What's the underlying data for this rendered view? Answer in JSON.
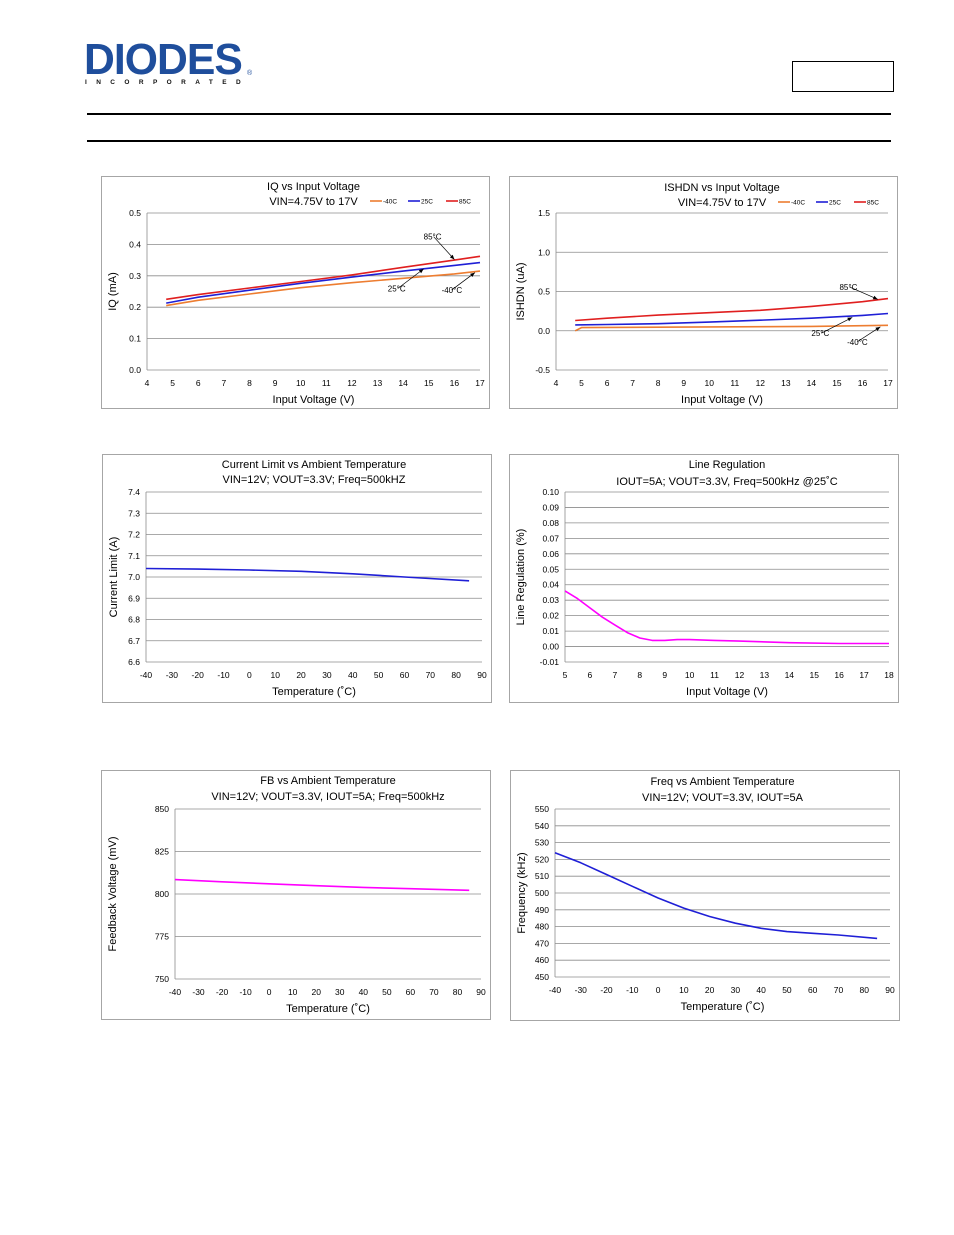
{
  "header": {
    "logo_text": "DIODES",
    "logo_sub": "INCORPORATED",
    "part_number": ""
  },
  "chart_data": [
    {
      "id": "iq",
      "type": "line",
      "title": "IQ vs Input Voltage",
      "subtitle": "VIN=4.75V to 17V",
      "xlabel": "Input Voltage (V)",
      "ylabel": "IQ (mA)",
      "xlim": [
        4,
        17
      ],
      "xticks": [
        4,
        5,
        6,
        7,
        8,
        9,
        10,
        11,
        12,
        13,
        14,
        15,
        16,
        17
      ],
      "ylim": [
        0,
        0.5
      ],
      "yticks": [
        0,
        0.1,
        0.2,
        0.3,
        0.4,
        0.5
      ],
      "decimals": 1,
      "grid": true,
      "legend_position": "top-right",
      "legend": [
        "-40C",
        "25C",
        "85C"
      ],
      "series": [
        {
          "name": "-40C",
          "color": "#ed7d31",
          "x": [
            4.75,
            6,
            8,
            10,
            12,
            14,
            16,
            17
          ],
          "y": [
            0.205,
            0.222,
            0.242,
            0.262,
            0.278,
            0.292,
            0.306,
            0.315
          ]
        },
        {
          "name": "25C",
          "color": "#1f1fd6",
          "x": [
            4.75,
            6,
            8,
            10,
            12,
            14,
            16,
            17
          ],
          "y": [
            0.213,
            0.232,
            0.254,
            0.276,
            0.296,
            0.315,
            0.333,
            0.342
          ]
        },
        {
          "name": "85C",
          "color": "#e01f1f",
          "x": [
            4.75,
            6,
            8,
            10,
            12,
            14,
            16,
            17
          ],
          "y": [
            0.225,
            0.24,
            0.261,
            0.282,
            0.303,
            0.327,
            0.35,
            0.362
          ]
        }
      ],
      "annotations": [
        {
          "text": "85°C",
          "x": 14.8,
          "y": 0.415,
          "arrow_to": [
            16.0,
            0.352
          ]
        },
        {
          "text": "25°C",
          "x": 13.4,
          "y": 0.25,
          "arrow_to": [
            14.8,
            0.322
          ]
        },
        {
          "text": "-40°C",
          "x": 15.5,
          "y": 0.245,
          "arrow_to": [
            16.8,
            0.31
          ]
        }
      ]
    },
    {
      "id": "ishdn",
      "type": "line",
      "title": "ISHDN vs Input Voltage",
      "subtitle": "VIN=4.75V to 17V",
      "xlabel": "Input Voltage (V)",
      "ylabel": "ISHDN (uA)",
      "xlim": [
        4,
        17
      ],
      "xticks": [
        4,
        5,
        6,
        7,
        8,
        9,
        10,
        11,
        12,
        13,
        14,
        15,
        16,
        17
      ],
      "ylim": [
        -0.5,
        1.5
      ],
      "yticks": [
        -0.5,
        0,
        0.5,
        1.0,
        1.5
      ],
      "decimals": 1,
      "grid": true,
      "legend_position": "top-right",
      "legend": [
        "-40C",
        "25C",
        "85C"
      ],
      "series": [
        {
          "name": "-40C",
          "color": "#ed7d31",
          "x": [
            4.75,
            5,
            8,
            11,
            14,
            17
          ],
          "y": [
            0.0,
            0.04,
            0.045,
            0.05,
            0.055,
            0.07
          ]
        },
        {
          "name": "25C",
          "color": "#1f1fd6",
          "x": [
            4.75,
            6,
            8,
            10,
            12,
            14,
            16,
            17
          ],
          "y": [
            0.075,
            0.08,
            0.09,
            0.11,
            0.135,
            0.16,
            0.195,
            0.22
          ]
        },
        {
          "name": "85C",
          "color": "#e01f1f",
          "x": [
            4.75,
            6,
            8,
            10,
            12,
            14,
            16,
            17
          ],
          "y": [
            0.13,
            0.16,
            0.2,
            0.23,
            0.26,
            0.31,
            0.37,
            0.41
          ]
        }
      ],
      "annotations": [
        {
          "text": "85°C",
          "x": 15.1,
          "y": 0.52,
          "arrow_to": [
            16.6,
            0.4
          ]
        },
        {
          "text": "25°C",
          "x": 14.0,
          "y": -0.07,
          "arrow_to": [
            15.6,
            0.17
          ]
        },
        {
          "text": "-40°C",
          "x": 15.4,
          "y": -0.18,
          "arrow_to": [
            16.7,
            0.05
          ]
        }
      ]
    },
    {
      "id": "ilim",
      "type": "line",
      "title": "Current Limit vs Ambient Temperature",
      "subtitle": "VIN=12V; VOUT=3.3V; Freq=500kHZ",
      "xlabel": "Temperature (˚C)",
      "ylabel": "Current Limit (A)",
      "xlim": [
        -40,
        90
      ],
      "xticks": [
        -40,
        -30,
        -20,
        -10,
        0,
        10,
        20,
        30,
        40,
        50,
        60,
        70,
        80,
        90
      ],
      "ylim": [
        6.6,
        7.4
      ],
      "yticks": [
        6.6,
        6.7,
        6.8,
        6.9,
        7.0,
        7.1,
        7.2,
        7.3,
        7.4
      ],
      "decimals": 1,
      "grid": true,
      "series": [
        {
          "color": "#1f1fd6",
          "x": [
            -40,
            -20,
            0,
            20,
            40,
            60,
            85
          ],
          "y": [
            7.04,
            7.037,
            7.033,
            7.027,
            7.015,
            7.0,
            6.982
          ]
        }
      ]
    },
    {
      "id": "linereg",
      "type": "line",
      "title": "Line Regulation",
      "subtitle": "IOUT=5A; VOUT=3.3V, Freq=500kHz @25˚C",
      "xlabel": "Input Voltage (V)",
      "ylabel": "Line Regulation (%)",
      "xlim": [
        5,
        18
      ],
      "xticks": [
        5,
        6,
        7,
        8,
        9,
        10,
        11,
        12,
        13,
        14,
        15,
        16,
        17,
        18
      ],
      "ylim": [
        -0.01,
        0.1
      ],
      "yticks": [
        -0.01,
        0,
        0.01,
        0.02,
        0.03,
        0.04,
        0.05,
        0.06,
        0.07,
        0.08,
        0.09,
        0.1
      ],
      "decimals": 2,
      "grid": true,
      "series": [
        {
          "color": "#ff00ff",
          "x": [
            5,
            5.5,
            6,
            6.5,
            7,
            7.5,
            8,
            8.5,
            9,
            9.5,
            10,
            11,
            12,
            14,
            16,
            18
          ],
          "y": [
            0.036,
            0.031,
            0.025,
            0.019,
            0.014,
            0.009,
            0.0055,
            0.004,
            0.004,
            0.0045,
            0.0045,
            0.004,
            0.0035,
            0.0025,
            0.002,
            0.002
          ]
        }
      ]
    },
    {
      "id": "fb",
      "type": "line",
      "title": "FB vs Ambient Temperature",
      "subtitle": "VIN=12V; VOUT=3.3V, IOUT=5A; Freq=500kHz",
      "xlabel": "Temperature (˚C)",
      "ylabel": "Feedback Voltage (mV)",
      "xlim": [
        -40,
        90
      ],
      "xticks": [
        -40,
        -30,
        -20,
        -10,
        0,
        10,
        20,
        30,
        40,
        50,
        60,
        70,
        80,
        90
      ],
      "ylim": [
        750,
        850
      ],
      "yticks": [
        750,
        775,
        800,
        825,
        850
      ],
      "decimals": 0,
      "grid": true,
      "series": [
        {
          "color": "#ff00ff",
          "x": [
            -40,
            -20,
            0,
            20,
            40,
            60,
            85
          ],
          "y": [
            808.5,
            807.2,
            806,
            804.9,
            803.9,
            803.1,
            802.2
          ]
        }
      ]
    },
    {
      "id": "freq",
      "type": "line",
      "title": "Freq vs Ambient Temperature",
      "subtitle": "VIN=12V; VOUT=3.3V, IOUT=5A",
      "xlabel": "Temperature (˚C)",
      "ylabel": "Frequency (kHz)",
      "xlim": [
        -40,
        90
      ],
      "xticks": [
        -40,
        -30,
        -20,
        -10,
        0,
        10,
        20,
        30,
        40,
        50,
        60,
        70,
        80,
        90
      ],
      "ylim": [
        450,
        550
      ],
      "yticks": [
        450,
        460,
        470,
        480,
        490,
        500,
        510,
        520,
        530,
        540,
        550
      ],
      "decimals": 0,
      "grid": true,
      "series": [
        {
          "color": "#1f1fd6",
          "x": [
            -40,
            -30,
            -20,
            -10,
            0,
            10,
            20,
            30,
            40,
            50,
            60,
            70,
            85
          ],
          "y": [
            524,
            518,
            511,
            504,
            497,
            491,
            486,
            482,
            479,
            477,
            476,
            475,
            473
          ]
        }
      ]
    }
  ]
}
